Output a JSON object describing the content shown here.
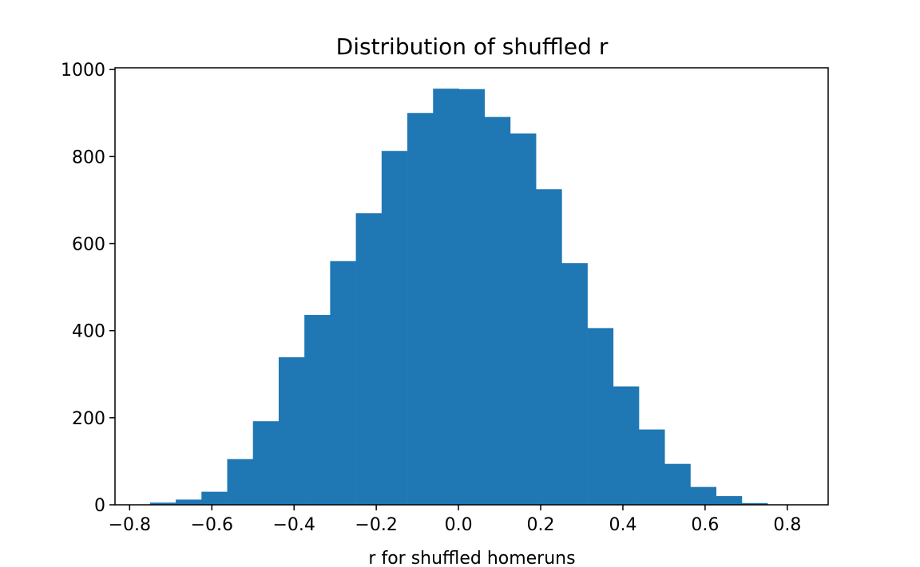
{
  "chart_data": {
    "type": "bar",
    "title": "Distribution of shuffled r",
    "xlabel": "r for shuffled homeruns",
    "ylabel": "",
    "xlim": [
      -0.8356,
      0.8994
    ],
    "ylim": [
      0,
      1004
    ],
    "grid": false,
    "legend": "none",
    "bar_color": "#1f77b4",
    "bin_edges": [
      -0.7504,
      -0.6878,
      -0.6252,
      -0.5626,
      -0.5,
      -0.4374,
      -0.3748,
      -0.3122,
      -0.2496,
      -0.187,
      -0.1244,
      -0.0618,
      0.0008,
      0.0634,
      0.126,
      0.1886,
      0.2512,
      0.3138,
      0.3764,
      0.439,
      0.5016,
      0.5642,
      0.6268,
      0.6894,
      0.752
    ],
    "counts": [
      5,
      12,
      30,
      105,
      192,
      339,
      436,
      560,
      670,
      813,
      900,
      956,
      955,
      891,
      853,
      725,
      555,
      406,
      272,
      173,
      94,
      41,
      20,
      4
    ],
    "x_ticks": [
      {
        "value": -0.8,
        "label": "−0.8"
      },
      {
        "value": -0.6,
        "label": "−0.6"
      },
      {
        "value": -0.4,
        "label": "−0.4"
      },
      {
        "value": -0.2,
        "label": "−0.2"
      },
      {
        "value": 0.0,
        "label": "0.0"
      },
      {
        "value": 0.2,
        "label": "0.2"
      },
      {
        "value": 0.4,
        "label": "0.4"
      },
      {
        "value": 0.6,
        "label": "0.6"
      },
      {
        "value": 0.8,
        "label": "0.8"
      }
    ],
    "y_ticks": [
      {
        "value": 0,
        "label": "0"
      },
      {
        "value": 200,
        "label": "200"
      },
      {
        "value": 400,
        "label": "400"
      },
      {
        "value": 600,
        "label": "600"
      },
      {
        "value": 800,
        "label": "800"
      },
      {
        "value": 1000,
        "label": "1000"
      }
    ]
  }
}
